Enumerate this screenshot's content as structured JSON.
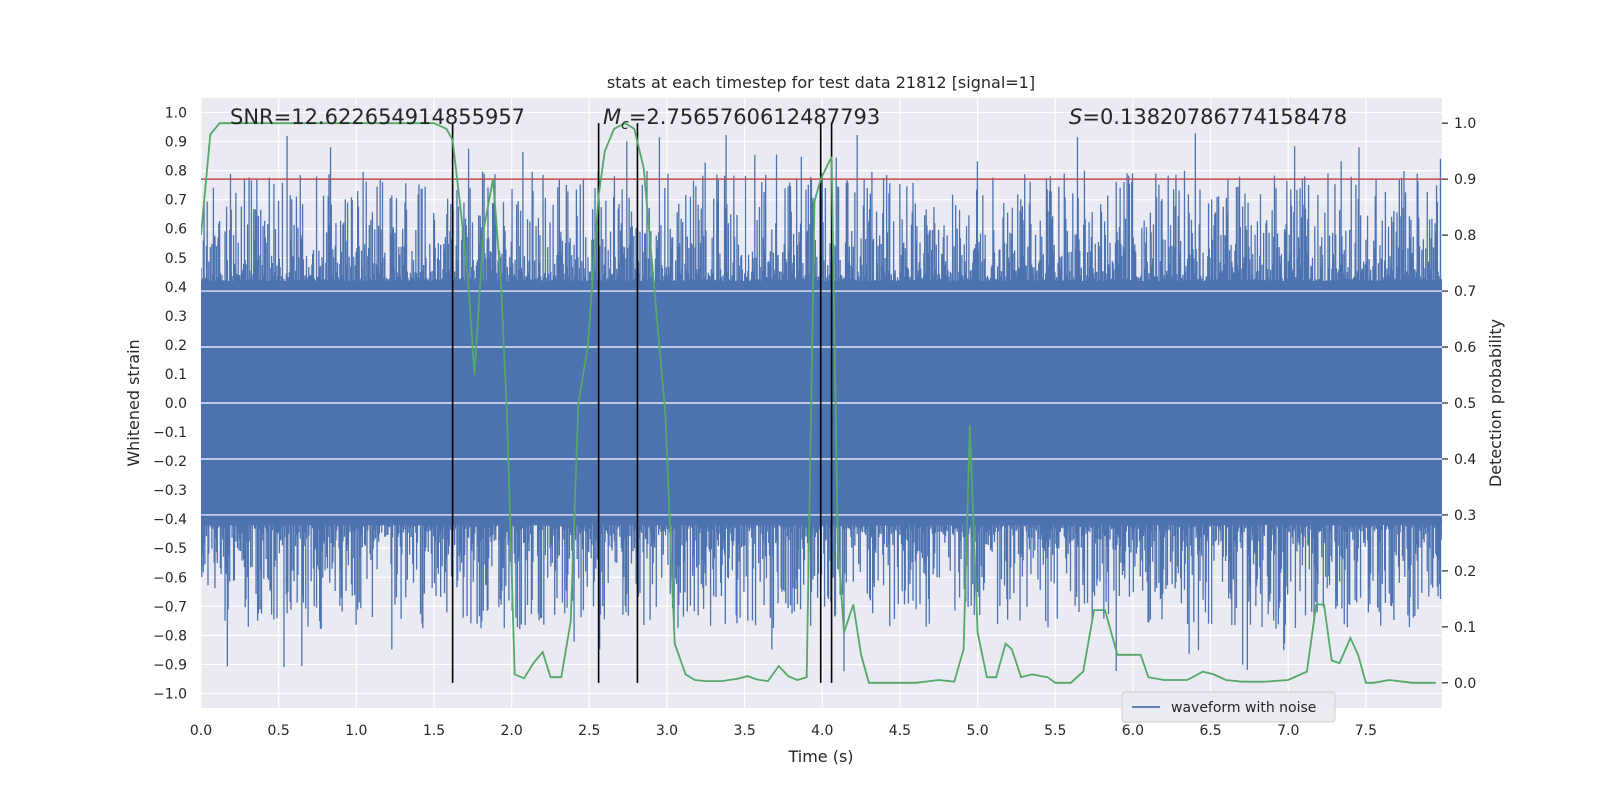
{
  "chart_data": {
    "type": "line",
    "title": "stats at each timestep for test data 21812 [signal=1]",
    "xlabel": "Time (s)",
    "ylabel_left": "Whitened strain",
    "ylabel_right": "Detection probability",
    "xlim": [
      0.0,
      7.99
    ],
    "ylim_left": [
      -1.05,
      1.05
    ],
    "ylim_right": [
      -0.045,
      1.045
    ],
    "xticks": [
      "0.0",
      "0.5",
      "1.0",
      "1.5",
      "2.0",
      "2.5",
      "3.0",
      "3.5",
      "4.0",
      "4.5",
      "5.0",
      "5.5",
      "6.0",
      "6.5",
      "7.0",
      "7.5"
    ],
    "yticks_left": [
      "1.0",
      "0.9",
      "0.8",
      "0.7",
      "0.6",
      "0.5",
      "0.4",
      "0.3",
      "0.2",
      "0.1",
      "0.0",
      "−0.1",
      "−0.2",
      "−0.3",
      "−0.4",
      "−0.5",
      "−0.6",
      "−0.7",
      "−0.8",
      "−0.9",
      "−1.0"
    ],
    "yticks_right": [
      "1.0",
      "0.9",
      "0.8",
      "0.7",
      "0.6",
      "0.5",
      "0.4",
      "0.3",
      "0.2",
      "0.1",
      "0.0"
    ],
    "annotations": {
      "snr": "SNR=12.622654914855957",
      "mc_symbol": "M",
      "mc_sub": "c",
      "mc_value": "=2.7565760612487793",
      "s_symbol": "S",
      "s_value": "=0.13820786774158478"
    },
    "threshold": {
      "axis": "right",
      "value": 0.9,
      "color": "#c44e52"
    },
    "vertical_markers": [
      1.62,
      2.56,
      2.81,
      3.99,
      4.06
    ],
    "series": [
      {
        "name": "waveform with noise",
        "axis": "left",
        "color": "#4c72b0",
        "style": "dense noise: core amplitude ±0.42, spikes up to ±0.93"
      },
      {
        "name": "detection probability",
        "axis": "right",
        "color": "#55a868",
        "x": [
          0.0,
          0.06,
          0.12,
          0.25,
          0.5,
          0.75,
          1.0,
          1.25,
          1.5,
          1.58,
          1.62,
          1.67,
          1.72,
          1.76,
          1.82,
          1.88,
          1.93,
          1.97,
          2.02,
          2.08,
          2.14,
          2.2,
          2.25,
          2.32,
          2.38,
          2.43,
          2.49,
          2.56,
          2.6,
          2.66,
          2.73,
          2.79,
          2.85,
          2.92,
          2.99,
          3.05,
          3.12,
          3.18,
          3.25,
          3.35,
          3.45,
          3.52,
          3.58,
          3.65,
          3.72,
          3.78,
          3.84,
          3.9,
          3.95,
          3.99,
          4.06,
          4.1,
          4.14,
          4.2,
          4.25,
          4.3,
          4.36,
          4.45,
          4.6,
          4.75,
          4.85,
          4.91,
          4.95,
          5.0,
          5.06,
          5.12,
          5.18,
          5.22,
          5.28,
          5.35,
          5.45,
          5.5,
          5.6,
          5.68,
          5.75,
          5.82,
          5.9,
          6.05,
          6.1,
          6.2,
          6.35,
          6.45,
          6.52,
          6.6,
          6.7,
          6.85,
          7.0,
          7.12,
          7.18,
          7.23,
          7.28,
          7.33,
          7.4,
          7.45,
          7.5,
          7.55,
          7.65,
          7.8,
          7.95
        ],
        "values": [
          0.8,
          0.98,
          1.0,
          1.0,
          1.0,
          1.0,
          1.0,
          1.0,
          1.0,
          0.99,
          0.97,
          0.85,
          0.72,
          0.55,
          0.81,
          0.9,
          0.72,
          0.48,
          0.015,
          0.008,
          0.035,
          0.055,
          0.01,
          0.01,
          0.11,
          0.5,
          0.6,
          0.87,
          0.95,
          0.99,
          1.0,
          0.99,
          0.92,
          0.7,
          0.48,
          0.07,
          0.015,
          0.005,
          0.003,
          0.003,
          0.007,
          0.012,
          0.006,
          0.003,
          0.03,
          0.012,
          0.005,
          0.01,
          0.86,
          0.9,
          0.94,
          0.25,
          0.09,
          0.14,
          0.05,
          0.0,
          0.0,
          0.0,
          0.0,
          0.005,
          0.002,
          0.06,
          0.46,
          0.09,
          0.01,
          0.01,
          0.07,
          0.06,
          0.01,
          0.015,
          0.01,
          0.0,
          0.0,
          0.02,
          0.13,
          0.13,
          0.05,
          0.05,
          0.01,
          0.005,
          0.005,
          0.02,
          0.015,
          0.005,
          0.002,
          0.002,
          0.005,
          0.02,
          0.14,
          0.14,
          0.04,
          0.035,
          0.08,
          0.05,
          0.0,
          0.0,
          0.005,
          0.0,
          0.0
        ]
      }
    ],
    "legend": {
      "label": "waveform with noise",
      "placement": "lower-right"
    }
  }
}
